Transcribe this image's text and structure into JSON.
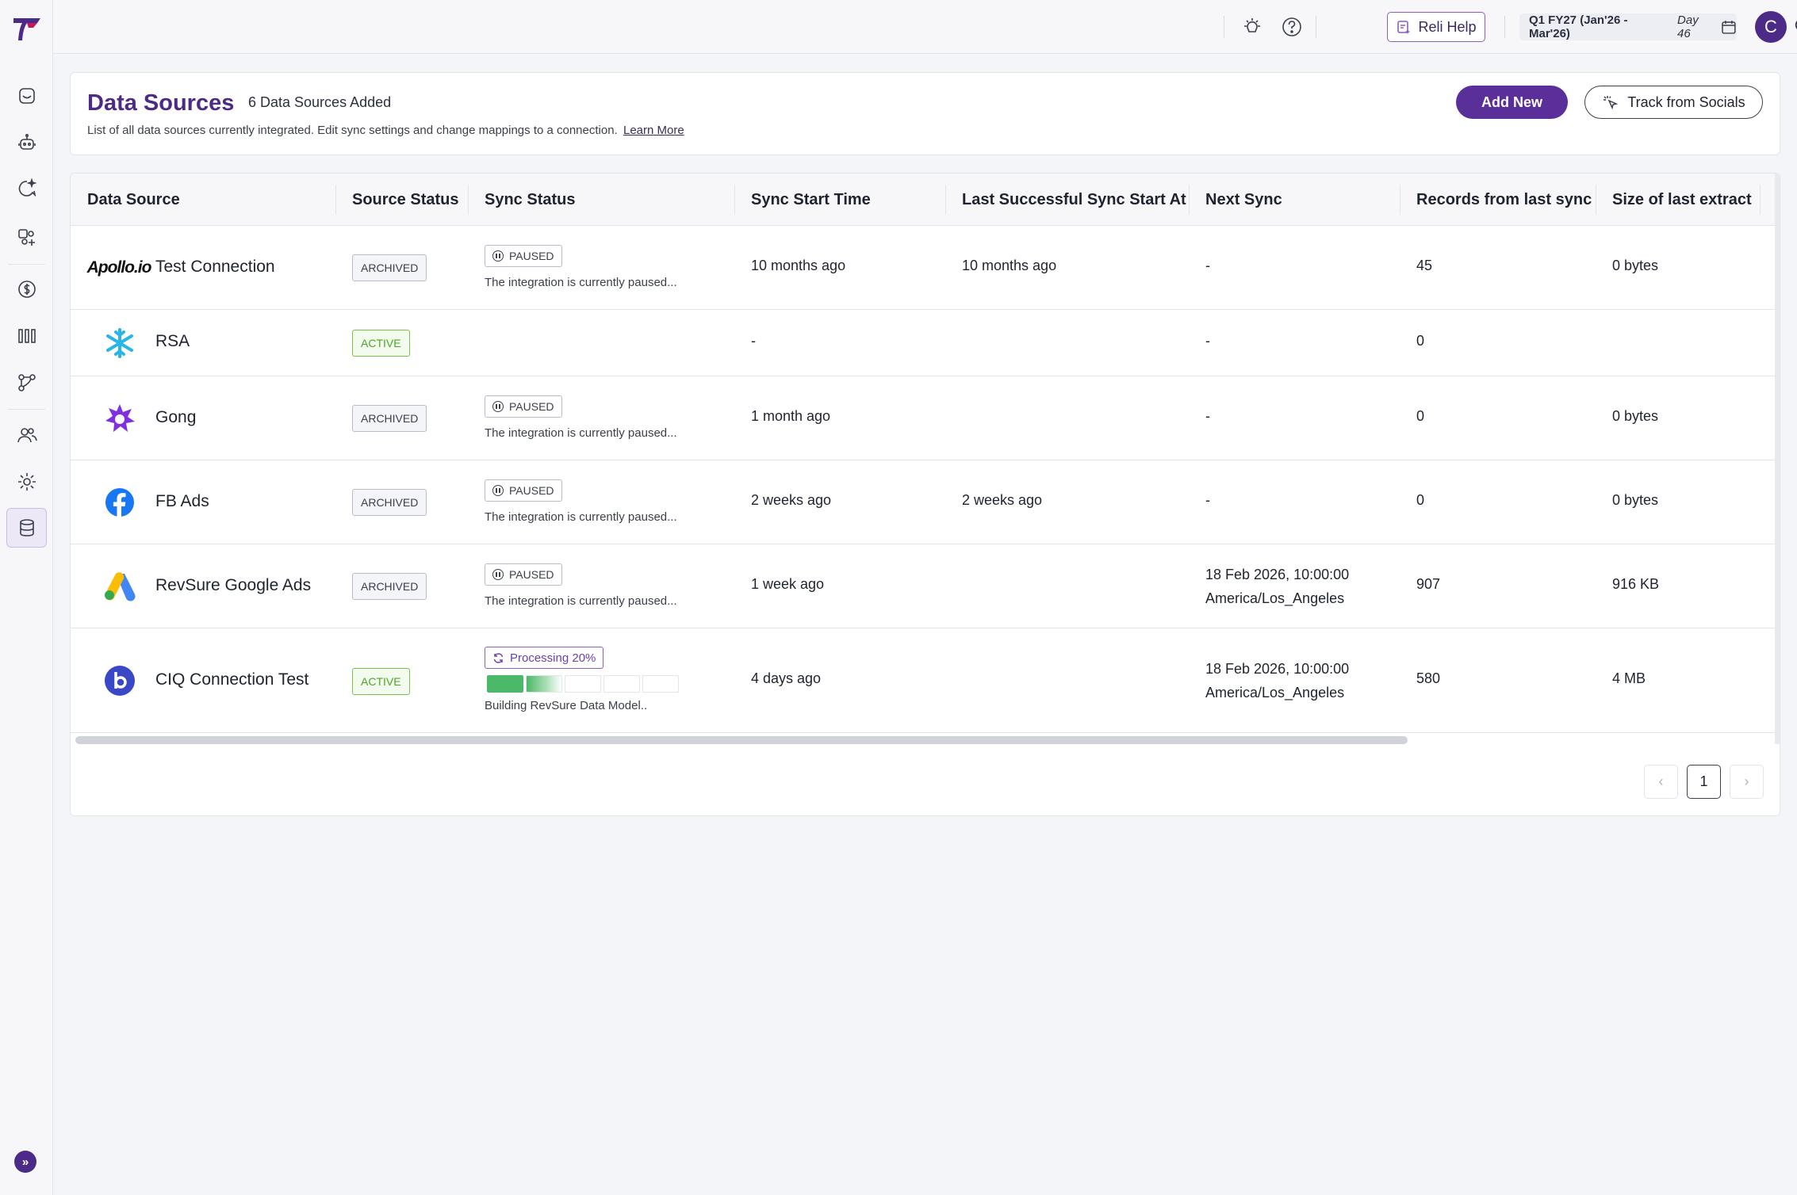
{
  "topbar": {
    "help_label": "Reli Help",
    "period_label": "Q1 FY27 (Jan'26 - Mar'26)",
    "period_day": "Day 46",
    "avatar_letter": "C",
    "user_initials": "CS"
  },
  "sidebar": {
    "items": [
      {
        "icon": "inbox-icon"
      },
      {
        "icon": "robot-icon"
      },
      {
        "icon": "sparkle-chat-icon"
      },
      {
        "icon": "people-analytics-icon"
      },
      {
        "icon": "dollar-icon"
      },
      {
        "icon": "columns-chart-icon"
      },
      {
        "icon": "branch-icon"
      },
      {
        "icon": "users-icon"
      },
      {
        "icon": "settings-gear-icon"
      },
      {
        "icon": "database-icon",
        "active": true
      }
    ]
  },
  "header": {
    "title": "Data Sources",
    "count_text": "6 Data Sources Added",
    "description": "List of all data sources currently integrated. Edit sync settings and change mappings to a connection.",
    "learn_more": "Learn More",
    "add_new_label": "Add New",
    "track_socials_label": "Track from Socials"
  },
  "table": {
    "columns": [
      "Data Source",
      "Source Status",
      "Sync Status",
      "Sync Start Time",
      "Last Successful Sync Start At",
      "Next Sync",
      "Records from last sync",
      "Size of last extract"
    ],
    "rows": [
      {
        "logo": "apollo-logo",
        "logo_text": "Apollo.io",
        "name": "Test Connection",
        "source_status": "ARCHIVED",
        "sync_badge": "PAUSED",
        "sync_msg": "The integration is currently paused...",
        "start": "10 months ago",
        "last_success": "10 months ago",
        "next_sync": "-",
        "next_sync_tz": "",
        "records": "45",
        "size": "0 bytes"
      },
      {
        "logo": "snowflake-logo",
        "name": "RSA",
        "source_status": "ACTIVE",
        "sync_badge": "",
        "sync_msg": "",
        "start": "-",
        "last_success": "",
        "next_sync": "-",
        "next_sync_tz": "",
        "records": "0",
        "size": ""
      },
      {
        "logo": "gong-logo",
        "name": "Gong",
        "source_status": "ARCHIVED",
        "sync_badge": "PAUSED",
        "sync_msg": "The integration is currently paused...",
        "start": "1 month ago",
        "last_success": "",
        "next_sync": "-",
        "next_sync_tz": "",
        "records": "0",
        "size": "0 bytes"
      },
      {
        "logo": "facebook-logo",
        "name": "FB Ads",
        "source_status": "ARCHIVED",
        "sync_badge": "PAUSED",
        "sync_msg": "The integration is currently paused...",
        "start": "2 weeks ago",
        "last_success": "2 weeks ago",
        "next_sync": "-",
        "next_sync_tz": "",
        "records": "0",
        "size": "0 bytes"
      },
      {
        "logo": "google-ads-logo",
        "name": "RevSure Google Ads",
        "source_status": "ARCHIVED",
        "sync_badge": "PAUSED",
        "sync_msg": "The integration is currently paused...",
        "start": "1 week ago",
        "last_success": "",
        "next_sync": "18 Feb 2026, 10:00:00",
        "next_sync_tz": "America/Los_Angeles",
        "records": "907",
        "size": "916 KB"
      },
      {
        "logo": "b-logo",
        "name": "CIQ Connection Test",
        "source_status": "ACTIVE",
        "sync_badge": "Processing 20%",
        "progress": 0.2,
        "sync_msg": "Building RevSure Data Model..",
        "start": "4 days ago",
        "last_success": "",
        "next_sync": "18 Feb 2026, 10:00:00",
        "next_sync_tz": "America/Los_Angeles",
        "records": "580",
        "size": "4 MB"
      }
    ]
  },
  "pagination": {
    "current_page": "1",
    "prev_label": "‹",
    "next_label": "›"
  },
  "colors": {
    "brand": "#4b2a88",
    "active_green": "#4da622",
    "progress_green": "#4cb86a"
  }
}
